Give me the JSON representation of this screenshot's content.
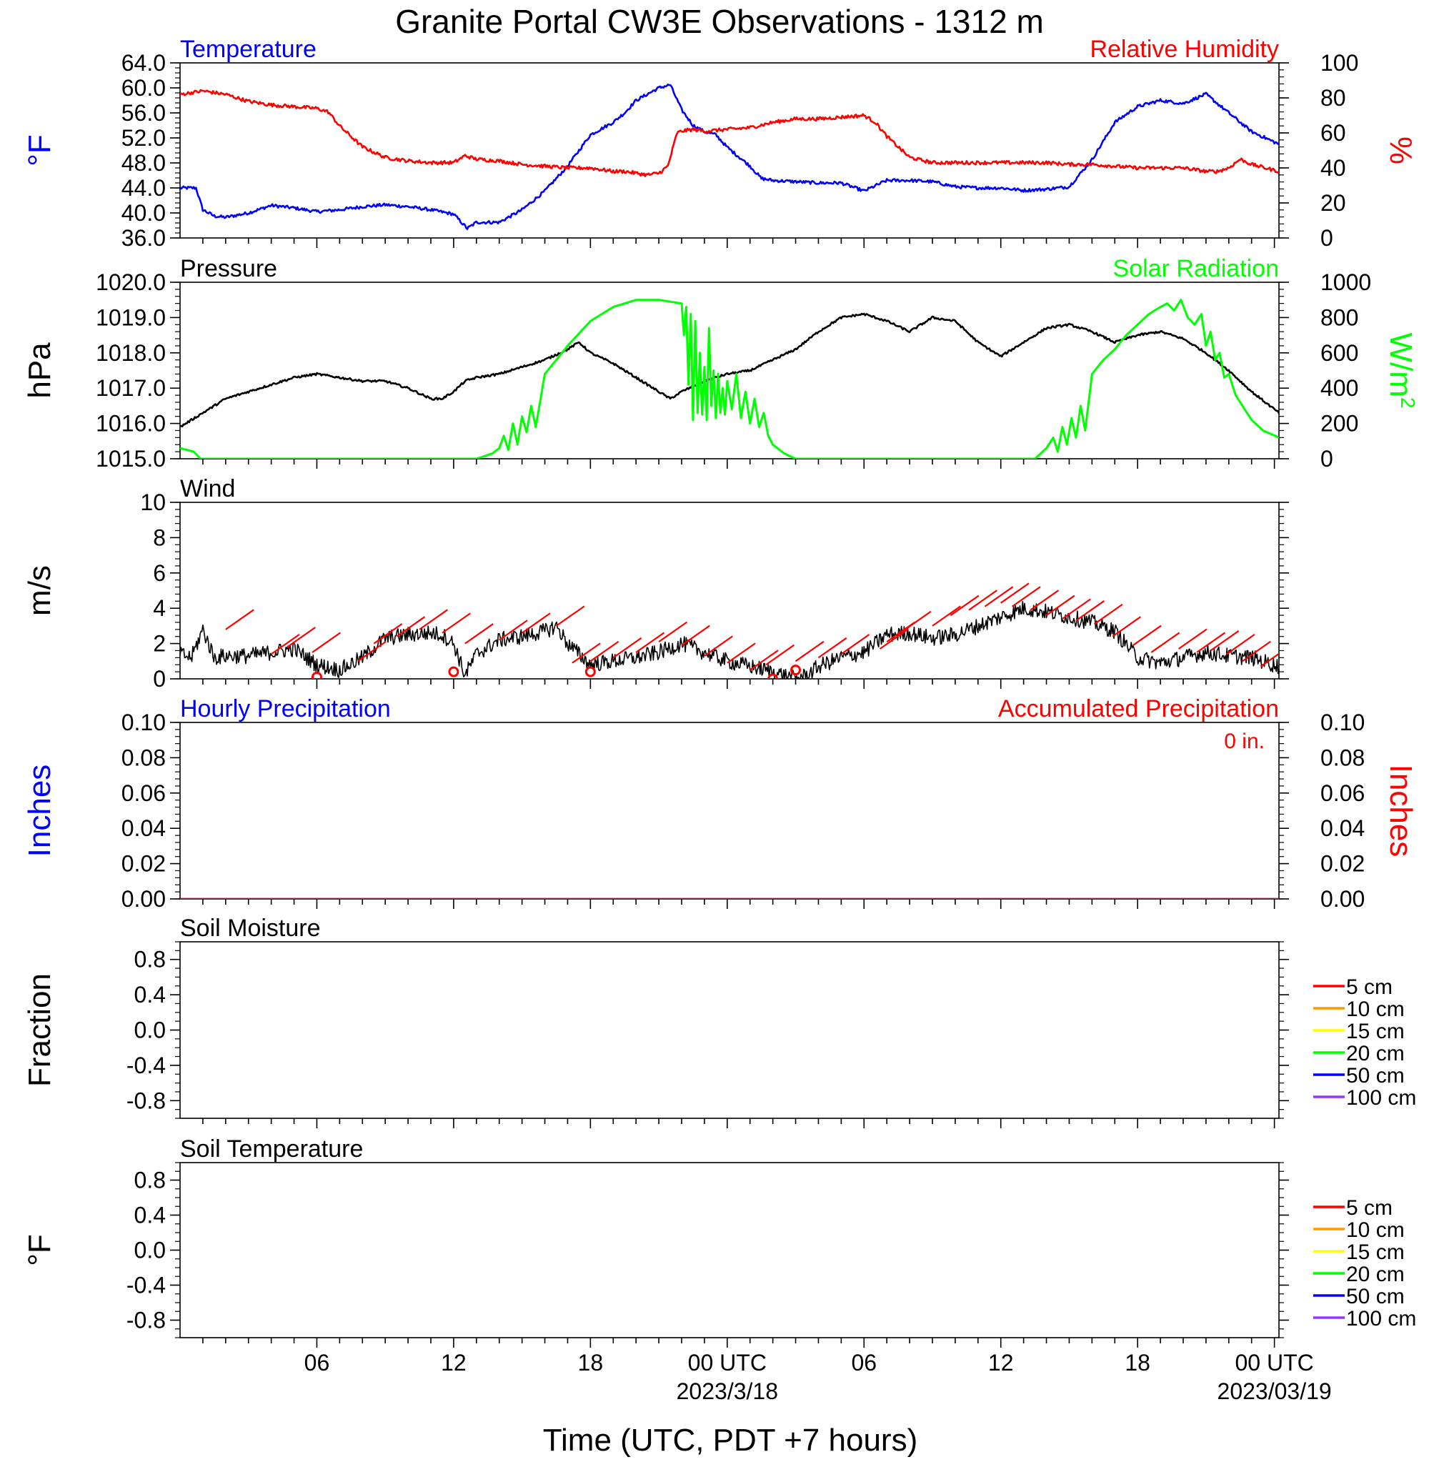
{
  "title": "Granite Portal CW3E Observations - 1312 m",
  "xlabel": "Time (UTC, PDT +7 hours)",
  "x_axis": {
    "range_hours": [
      0,
      48.2
    ],
    "ticks": [
      {
        "h": 6,
        "label": "06",
        "date": ""
      },
      {
        "h": 12,
        "label": "12",
        "date": ""
      },
      {
        "h": 18,
        "label": "18",
        "date": ""
      },
      {
        "h": 24,
        "label": "00 UTC",
        "date": "2023/3/18"
      },
      {
        "h": 30,
        "label": "06",
        "date": ""
      },
      {
        "h": 36,
        "label": "12",
        "date": ""
      },
      {
        "h": 42,
        "label": "18",
        "date": ""
      },
      {
        "h": 48,
        "label": "00 UTC",
        "date": "2023/03/19"
      }
    ]
  },
  "colors": {
    "temperature": "#0000ff",
    "humidity": "#ff0000",
    "pressure": "#000000",
    "solar": "#00ff00",
    "wind": "#000000",
    "barb": "#ff0000"
  },
  "chart_data": [
    {
      "id": "temp_rh",
      "type": "line",
      "title_left": "Temperature",
      "title_right": "Relative Humidity",
      "ylabel_left": "°F",
      "ylabel_right": "%",
      "ylim_left": [
        36,
        64
      ],
      "ylim_right": [
        0,
        100
      ],
      "yticks_left": [
        "36.0",
        "40.0",
        "44.0",
        "48.0",
        "52.0",
        "56.0",
        "60.0",
        "64.0"
      ],
      "yticks_right": [
        "0",
        "20",
        "40",
        "60",
        "80",
        "100"
      ],
      "series": [
        {
          "name": "Temperature",
          "axis": "left",
          "color": "#0000ff",
          "x": [
            0,
            0.7,
            1,
            1.5,
            2,
            3,
            4,
            5,
            6,
            7,
            8,
            9,
            10,
            11,
            12,
            12.6,
            13,
            14,
            15,
            16,
            17,
            17.5,
            18,
            19,
            19.5,
            20,
            20.5,
            21,
            21.5,
            22,
            22.5,
            23,
            23.5,
            24,
            25,
            25.5,
            26,
            27,
            28,
            29,
            30,
            31,
            32,
            33,
            34,
            35,
            36,
            37,
            38,
            39,
            40,
            41,
            42,
            43,
            44,
            45,
            46,
            47,
            48.2
          ],
          "y": [
            44,
            44,
            40.5,
            39.5,
            39.3,
            40,
            41.2,
            40.8,
            40.2,
            40.5,
            41,
            41.3,
            41,
            40.5,
            39.8,
            37.5,
            38.5,
            38.5,
            40.5,
            43.5,
            47.5,
            50,
            52.5,
            54.5,
            56,
            58,
            59,
            60,
            60.5,
            56.5,
            54,
            53,
            52.5,
            50.5,
            47.5,
            45.5,
            45.2,
            45,
            44.8,
            44.8,
            43.5,
            45.2,
            45.2,
            45,
            44.2,
            44,
            44,
            43.6,
            43.8,
            44.2,
            48.5,
            54.5,
            57,
            58,
            57.5,
            59,
            56,
            53,
            51
          ]
        },
        {
          "name": "Relative Humidity",
          "axis": "right",
          "color": "#ff0000",
          "x": [
            0,
            1,
            2,
            3,
            4,
            5,
            6,
            6.5,
            7,
            7.5,
            8,
            9,
            10,
            11,
            12,
            12.5,
            13,
            14,
            15,
            16,
            17,
            18,
            19,
            19.5,
            20,
            20.5,
            21,
            21.4,
            21.8,
            22,
            22.5,
            23,
            24,
            25,
            26,
            27,
            28,
            29,
            29.5,
            30,
            30.5,
            31,
            32,
            33,
            34,
            35,
            36,
            37,
            38,
            39,
            40,
            41,
            42,
            43,
            44,
            45,
            45.5,
            46,
            46.5,
            47,
            48.2
          ],
          "y": [
            82,
            84,
            82,
            78,
            76,
            75,
            74,
            72,
            64,
            58,
            52,
            46,
            44,
            43,
            43,
            47,
            45,
            44,
            42,
            41,
            40,
            40,
            38,
            38,
            37,
            36,
            37,
            41,
            60,
            61,
            62,
            61,
            62,
            63,
            66,
            68,
            68,
            69,
            69.5,
            70,
            66,
            58,
            46,
            43,
            43,
            43,
            43,
            43,
            43,
            42,
            42,
            41,
            40,
            40,
            40,
            38,
            38,
            40,
            45,
            42,
            38
          ]
        }
      ]
    },
    {
      "id": "pressure_solar",
      "type": "line",
      "title_left": "Pressure",
      "title_right": "Solar Radiation",
      "ylabel_left": "hPa",
      "ylabel_right": "W/m",
      "ylabel_right_sup": "2",
      "ylim_left": [
        1015,
        1020
      ],
      "ylim_right": [
        0,
        1000
      ],
      "yticks_left": [
        "1015.0",
        "1016.0",
        "1017.0",
        "1018.0",
        "1019.0",
        "1020.0"
      ],
      "yticks_right": [
        "0",
        "200",
        "400",
        "600",
        "800",
        "1000"
      ],
      "series": [
        {
          "name": "Pressure",
          "axis": "left",
          "color": "#000000",
          "x": [
            0,
            1,
            2,
            3,
            4,
            5,
            6,
            7,
            8,
            9,
            10,
            11,
            11.5,
            12,
            12.5,
            13,
            14,
            15,
            16,
            17,
            17.5,
            18,
            19,
            20,
            21,
            21.5,
            22,
            23,
            24,
            25,
            26,
            27,
            28,
            29,
            30,
            31,
            32,
            33,
            34,
            35,
            36,
            37,
            38,
            39,
            40,
            41,
            42,
            43,
            44,
            45,
            46,
            47,
            48.2
          ],
          "y": [
            1015.9,
            1016.3,
            1016.7,
            1016.9,
            1017.1,
            1017.3,
            1017.4,
            1017.3,
            1017.2,
            1017.2,
            1017.0,
            1016.7,
            1016.7,
            1016.9,
            1017.2,
            1017.3,
            1017.4,
            1017.6,
            1017.8,
            1018.1,
            1018.3,
            1018.0,
            1017.7,
            1017.3,
            1016.9,
            1016.7,
            1016.9,
            1017.2,
            1017.4,
            1017.5,
            1017.8,
            1018.1,
            1018.6,
            1019.0,
            1019.1,
            1018.9,
            1018.6,
            1019.0,
            1018.9,
            1018.3,
            1017.9,
            1018.3,
            1018.7,
            1018.8,
            1018.6,
            1018.3,
            1018.5,
            1018.6,
            1018.4,
            1018.0,
            1017.5,
            1016.9,
            1016.3
          ]
        },
        {
          "name": "Solar Radiation",
          "axis": "right",
          "color": "#00ff00",
          "x": [
            0,
            0.6,
            0.9,
            5,
            10,
            13,
            13.7,
            14,
            14.2,
            14.4,
            14.6,
            14.8,
            15,
            15.2,
            15.4,
            15.6,
            16,
            17,
            18,
            19,
            20,
            21,
            22,
            22.1,
            22.2,
            22.3,
            22.4,
            22.5,
            22.6,
            22.7,
            22.8,
            22.9,
            23,
            23.1,
            23.2,
            23.3,
            23.4,
            23.5,
            23.6,
            23.7,
            23.8,
            23.9,
            24,
            24.2,
            24.4,
            24.6,
            24.8,
            25,
            25.2,
            25.4,
            25.6,
            25.8,
            26,
            26.5,
            27,
            30,
            35,
            37.5,
            38,
            38.3,
            38.5,
            38.7,
            38.9,
            39.1,
            39.3,
            39.5,
            39.7,
            40,
            40.5,
            41,
            41.5,
            42,
            42.5,
            43,
            43.3,
            43.6,
            43.9,
            44.2,
            44.5,
            44.8,
            45,
            45.2,
            45.4,
            45.6,
            45.8,
            46,
            46.3,
            46.6,
            47,
            47.5,
            48.2
          ],
          "y": [
            60,
            40,
            0,
            0,
            0,
            0,
            30,
            60,
            130,
            50,
            200,
            80,
            240,
            150,
            300,
            180,
            480,
            640,
            780,
            860,
            900,
            900,
            880,
            700,
            860,
            420,
            820,
            220,
            780,
            260,
            600,
            250,
            520,
            220,
            740,
            300,
            500,
            230,
            480,
            260,
            400,
            250,
            440,
            280,
            480,
            230,
            380,
            200,
            340,
            180,
            260,
            130,
            80,
            30,
            0,
            0,
            0,
            0,
            60,
            120,
            40,
            180,
            80,
            230,
            120,
            300,
            160,
            480,
            560,
            620,
            700,
            760,
            820,
            860,
            880,
            840,
            900,
            800,
            760,
            820,
            640,
            720,
            560,
            600,
            460,
            480,
            360,
            300,
            220,
            160,
            120
          ]
        }
      ]
    },
    {
      "id": "wind",
      "type": "line",
      "title_left": "Wind",
      "ylabel_left": "m/s",
      "ylim_left": [
        0,
        10
      ],
      "yticks_left": [
        "0",
        "2",
        "4",
        "6",
        "8",
        "10"
      ],
      "series": [
        {
          "name": "Wind",
          "axis": "left",
          "color": "#000000",
          "x": [
            0,
            0.5,
            1,
            1.5,
            2,
            3,
            4,
            5,
            6,
            7,
            8,
            9,
            10,
            11,
            11.5,
            12,
            12.5,
            13,
            14,
            15,
            16,
            16.5,
            17,
            18,
            19,
            20,
            21,
            22,
            23,
            24,
            25,
            26,
            26.5,
            27,
            27.5,
            28,
            29,
            30,
            31,
            32,
            33,
            34,
            35,
            36,
            37,
            38,
            39,
            40,
            41,
            42,
            43,
            44,
            45,
            46,
            47,
            48.2
          ],
          "y": [
            1.4,
            1.2,
            2.8,
            1.2,
            1.3,
            1.3,
            1.5,
            1.7,
            0.8,
            0.5,
            1.2,
            2.3,
            2.5,
            2.6,
            2.5,
            2.0,
            0.2,
            1.4,
            2.2,
            2.4,
            2.7,
            3.0,
            2.0,
            0.8,
            1.0,
            1.2,
            1.5,
            2.0,
            1.5,
            1.0,
            0.7,
            0.4,
            0.2,
            0.0,
            0.2,
            0.7,
            1.2,
            1.5,
            2.5,
            2.6,
            2.3,
            2.5,
            3.0,
            3.5,
            4.0,
            3.8,
            3.5,
            3.2,
            2.7,
            1.2,
            0.9,
            1.2,
            1.5,
            1.3,
            1.2,
            0.7
          ]
        }
      ],
      "barbs": {
        "barbs_x": [
          2,
          4,
          4.7,
          5.8,
          7.8,
          8.5,
          9.5,
          10.5,
          11.5,
          12.5,
          14,
          15,
          16.5,
          17.2,
          18,
          19,
          20,
          21,
          22,
          23,
          24,
          25,
          25.7,
          27,
          28,
          29,
          30.7,
          31,
          31.7,
          33,
          33.8,
          34.6,
          35.3,
          36,
          36.5,
          37.3,
          38,
          38.7,
          39.3,
          40.1,
          40.9,
          41.8,
          42.6,
          43.8,
          44.6,
          45.2,
          45.9,
          46.6,
          47.4
        ],
        "barbs_speed": [
          2.8,
          1.4,
          1.8,
          1.5,
          1.0,
          2.0,
          2.4,
          2.8,
          2.6,
          2.0,
          2.2,
          2.6,
          3.0,
          0.9,
          1.0,
          1.2,
          1.5,
          2.1,
          1.9,
          1.3,
          0.9,
          0.5,
          0.8,
          1.0,
          1.2,
          1.4,
          1.7,
          2.1,
          2.7,
          3.0,
          3.6,
          3.9,
          4.1,
          4.3,
          4.1,
          3.9,
          3.6,
          3.4,
          3.3,
          3.1,
          2.4,
          1.9,
          1.5,
          1.7,
          1.5,
          1.6,
          1.4,
          1.0,
          0.7
        ],
        "calm_x": [
          6.0,
          12.0,
          18.0,
          26.0,
          27.0
        ],
        "calm_y": [
          0.1,
          0.4,
          0.4,
          0.0,
          0.5
        ]
      }
    },
    {
      "id": "precip",
      "type": "line",
      "title_left": "Hourly Precipitation",
      "title_right": "Accumulated Precipitation",
      "note_right": "0 in.",
      "ylabel_left": "Inches",
      "ylabel_right": "Inches",
      "ylim_left": [
        0,
        0.1
      ],
      "ylim_right": [
        0,
        0.1
      ],
      "yticks_left": [
        "0.00",
        "0.02",
        "0.04",
        "0.06",
        "0.08",
        "0.10"
      ],
      "yticks_right": [
        "0.00",
        "0.02",
        "0.04",
        "0.06",
        "0.08",
        "0.10"
      ],
      "series": [
        {
          "name": "Hourly Precipitation",
          "axis": "left",
          "color": "#0000ff",
          "x": [
            0,
            48.2
          ],
          "y": [
            0,
            0
          ]
        },
        {
          "name": "Accumulated Precipitation",
          "axis": "right",
          "color": "#ff0000",
          "x": [
            0,
            48.2
          ],
          "y": [
            0,
            0
          ]
        }
      ]
    },
    {
      "id": "soil_moisture",
      "type": "line",
      "title_left": "Soil Moisture",
      "ylabel_left": "Fraction",
      "ylim_left": [
        -1,
        1
      ],
      "yticks_left": [
        "-0.8",
        "-0.4",
        "0.0",
        "0.4",
        "0.8"
      ],
      "ytick_values": [
        -0.8,
        -0.4,
        0,
        0.4,
        0.8
      ],
      "legend": [
        {
          "label": "5 cm",
          "color": "#ff0000"
        },
        {
          "label": "10 cm",
          "color": "#ff9900"
        },
        {
          "label": "15 cm",
          "color": "#ffff00"
        },
        {
          "label": "20 cm",
          "color": "#00ff00"
        },
        {
          "label": "50 cm",
          "color": "#0000ff"
        },
        {
          "label": "100 cm",
          "color": "#9933ff"
        }
      ],
      "series": []
    },
    {
      "id": "soil_temp",
      "type": "line",
      "title_left": "Soil Temperature",
      "ylabel_left": "°F",
      "ylim_left": [
        -1,
        1
      ],
      "yticks_left": [
        "-0.8",
        "-0.4",
        "0.0",
        "0.4",
        "0.8"
      ],
      "ytick_values": [
        -0.8,
        -0.4,
        0,
        0.4,
        0.8
      ],
      "legend": [
        {
          "label": "5 cm",
          "color": "#ff0000"
        },
        {
          "label": "10 cm",
          "color": "#ff9900"
        },
        {
          "label": "15 cm",
          "color": "#ffff00"
        },
        {
          "label": "20 cm",
          "color": "#00ff00"
        },
        {
          "label": "50 cm",
          "color": "#0000ff"
        },
        {
          "label": "100 cm",
          "color": "#9933ff"
        }
      ],
      "series": []
    }
  ]
}
